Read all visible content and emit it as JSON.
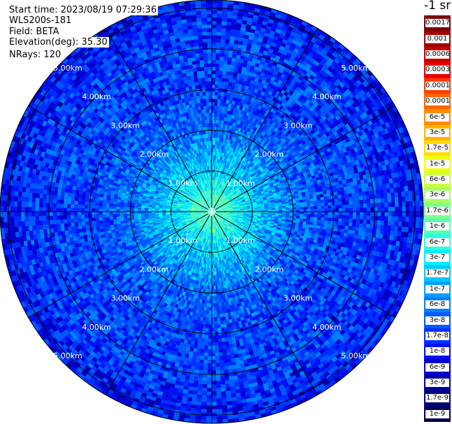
{
  "header": {
    "start_time": "Start time: 2023/08/19 07:29:36",
    "instrument": "WLS200s-181",
    "field": "Field: BETA",
    "elevation": "Elevation(deg): 35.30",
    "nrays": "NRays: 120"
  },
  "colorbar": {
    "unit": "-1 sr",
    "labels": [
      "0.0017",
      "0.001",
      "0.0006",
      "0.0003",
      "0.00017",
      "0.0001",
      "6e-5",
      "3e-5",
      "1.7e-5",
      "1e-5",
      "6e-6",
      "3e-6",
      "1.7e-6",
      "1e-6",
      "6e-7",
      "3e-7",
      "1.7e-7",
      "1e-7",
      "6e-8",
      "3e-8",
      "1.7e-8",
      "1e-8",
      "6e-9",
      "3e-9",
      "1.7e-9",
      "1e-9"
    ],
    "colors": [
      "#7a0000",
      "#a00000",
      "#c80000",
      "#e80000",
      "#ff3c00",
      "#ff6400",
      "#ff8c00",
      "#ffb400",
      "#ffdc00",
      "#f0ff10",
      "#ccff3a",
      "#a4ff62",
      "#7cff8a",
      "#54ffb2",
      "#30ffd8",
      "#00ecff",
      "#00c8ff",
      "#00a0ff",
      "#0080ff",
      "#0058ff",
      "#0030ff",
      "#0010f0",
      "#0000c8",
      "#0000a0",
      "#000078",
      "#000050"
    ]
  },
  "chart_data": {
    "type": "heatmap",
    "projection": "polar (PPI scan)",
    "field": "BETA",
    "units": "-1 sr",
    "elevation_deg": 35.3,
    "n_rays": 120,
    "range_rings_km": [
      1,
      2,
      3,
      4,
      5
    ],
    "range_labels": [
      "1.00km",
      "2.00km",
      "3.00km",
      "4.00km",
      "5.00km"
    ],
    "max_range_km": 5.2,
    "spokes_every_deg": 30,
    "color_scale": "log",
    "colorbar_range": [
      1e-09,
      0.0017
    ],
    "radial_profile": [
      {
        "range_km": 0.5,
        "beta": 6e-07
      },
      {
        "range_km": 1.0,
        "beta": 3e-07
      },
      {
        "range_km": 2.0,
        "beta": 6e-08
      },
      {
        "range_km": 3.0,
        "beta": 3e-08
      },
      {
        "range_km": 4.0,
        "beta": 3e-08
      },
      {
        "range_km": 5.0,
        "beta": 1.7e-08
      }
    ]
  }
}
